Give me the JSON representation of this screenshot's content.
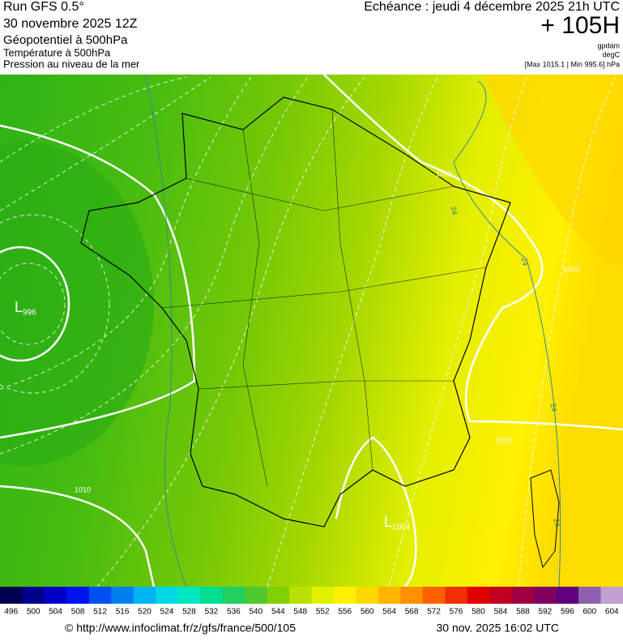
{
  "header": {
    "run": "Run GFS 0.5°",
    "run_date": "30 novembre 2025 12Z",
    "line1": "Géopotentiel à 500hPa",
    "line2": "Température à 500hPa",
    "line3": "Pression au niveau de la mer",
    "valid": "Echéance : jeudi 4 décembre 2025 21h UTC",
    "lead": "+ 105H",
    "unit1": "gpdam",
    "unit2": "degC",
    "unit3": "[Max 1015.1 | Min 995.6] hPa"
  },
  "map": {
    "lows": [
      {
        "letter": "L",
        "value": 996
      },
      {
        "letter": "L",
        "value": 1004
      }
    ],
    "isobar_labels": [
      1010,
      1010,
      1010,
      1010
    ],
    "temp_labels": [
      24,
      24,
      24,
      24
    ]
  },
  "colorbar": {
    "ticks": [
      496,
      500,
      504,
      508,
      512,
      516,
      520,
      524,
      528,
      532,
      536,
      540,
      544,
      548,
      552,
      556,
      560,
      564,
      568,
      572,
      576,
      580,
      584,
      588,
      592,
      596,
      600,
      604
    ],
    "colors": [
      "#000050",
      "#00008c",
      "#0000c8",
      "#0014f0",
      "#0050f0",
      "#0080f0",
      "#00b4f0",
      "#00d8e8",
      "#00e8c0",
      "#00e090",
      "#20d060",
      "#50c830",
      "#80d000",
      "#b8e000",
      "#e0f000",
      "#fff000",
      "#ffd800",
      "#ffb400",
      "#ff9000",
      "#ff6000",
      "#f03000",
      "#e00000",
      "#c00020",
      "#a00040",
      "#800060",
      "#600080",
      "#9060b0",
      "#c0a0d0"
    ]
  },
  "footer": {
    "url": "© http://www.infoclimat.fr/z/gfs/france/500/105",
    "stamp": "30 nov. 2025 16:02 UTC"
  }
}
